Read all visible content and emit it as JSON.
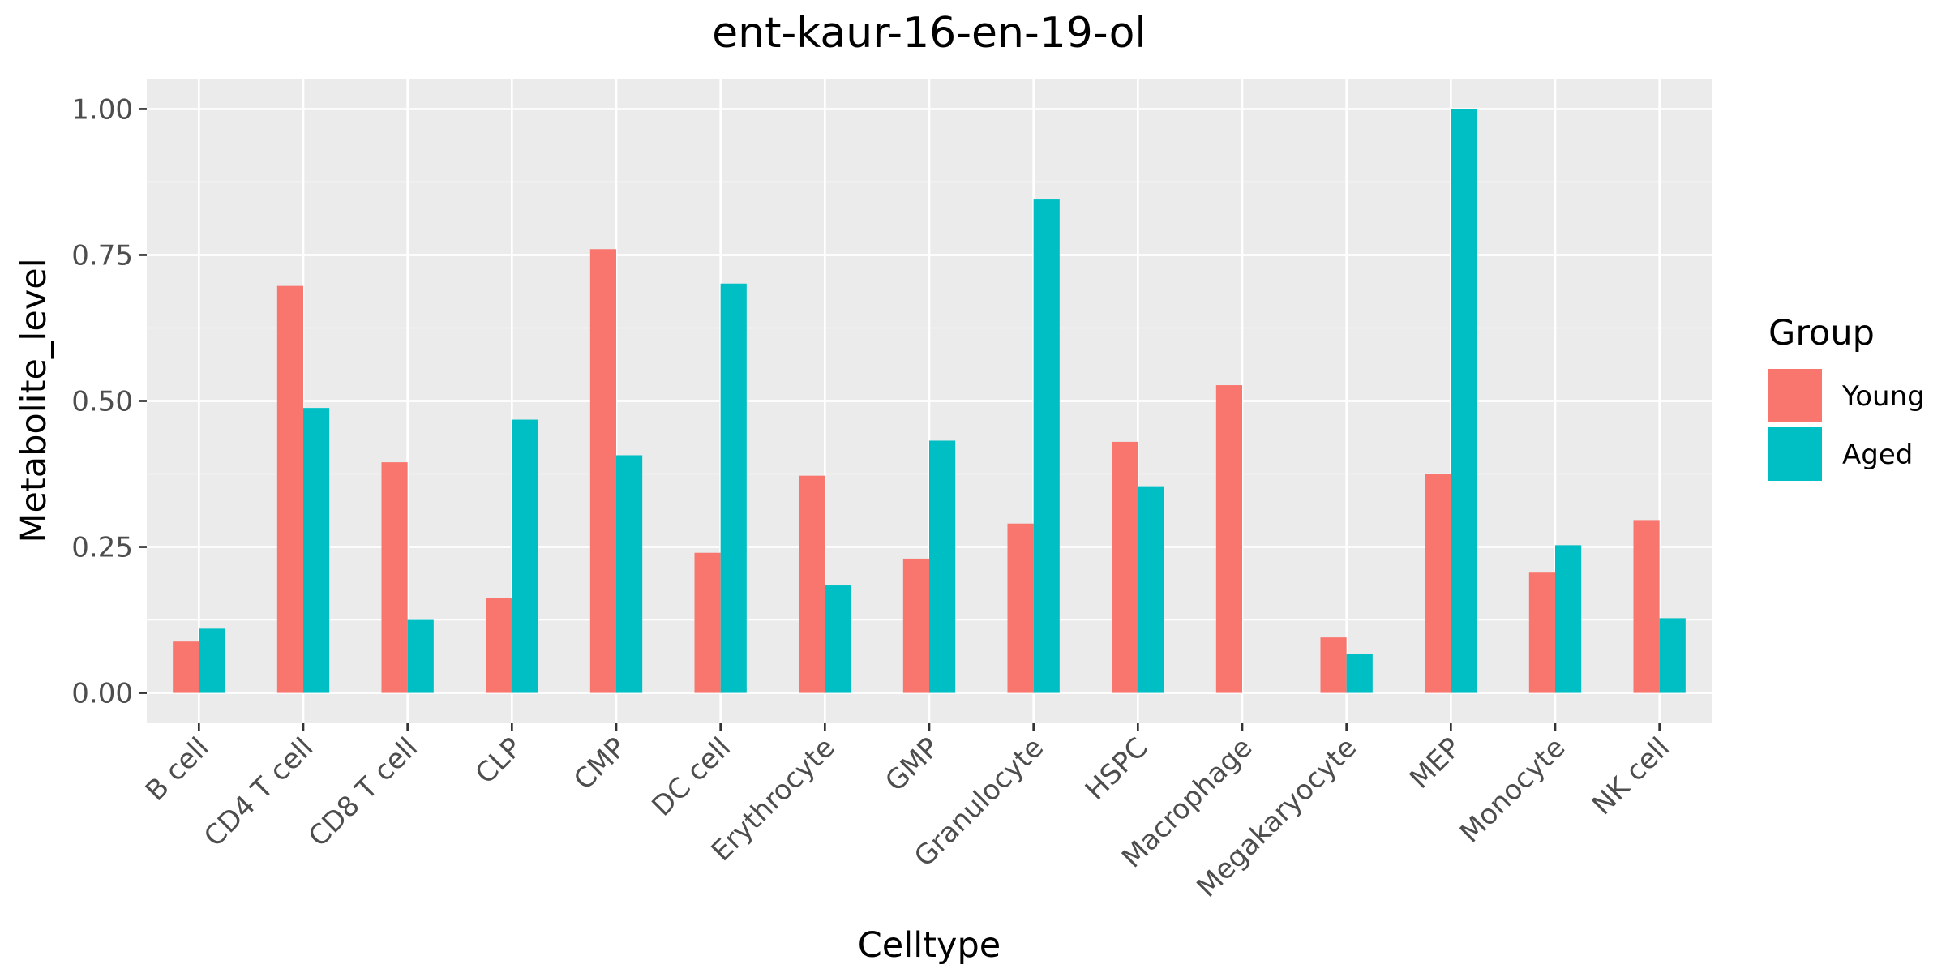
{
  "chart_data": {
    "type": "bar",
    "title": "ent-kaur-16-en-19-ol",
    "xlabel": "Celltype",
    "ylabel": "Metabolite_level",
    "categories": [
      "B cell",
      "CD4 T cell",
      "CD8 T cell",
      "CLP",
      "CMP",
      "DC cell",
      "Erythrocyte",
      "GMP",
      "Granulocyte",
      "HSPC",
      "Macrophage",
      "Megakaryocyte",
      "MEP",
      "Monocyte",
      "NK cell"
    ],
    "series": [
      {
        "name": "Young",
        "color": "#F8766D",
        "values": [
          0.088,
          0.697,
          0.395,
          0.162,
          0.76,
          0.24,
          0.372,
          0.23,
          0.29,
          0.43,
          0.527,
          0.095,
          0.375,
          0.206,
          0.296
        ]
      },
      {
        "name": "Aged",
        "color": "#00BFC4",
        "values": [
          0.11,
          0.488,
          0.125,
          0.468,
          0.407,
          0.701,
          0.184,
          0.432,
          0.845,
          0.354,
          null,
          0.067,
          1.0,
          0.253,
          0.128
        ]
      }
    ],
    "ylim": [
      -0.052,
      1.052
    ],
    "yticks": [
      "0.00",
      "0.25",
      "0.50",
      "0.75",
      "1.00"
    ],
    "ytick_values": [
      0,
      0.25,
      0.5,
      0.75,
      1.0
    ],
    "legend": {
      "title": "Group",
      "position": "right"
    },
    "grid": true,
    "panel_background": "#EBEBEB"
  }
}
